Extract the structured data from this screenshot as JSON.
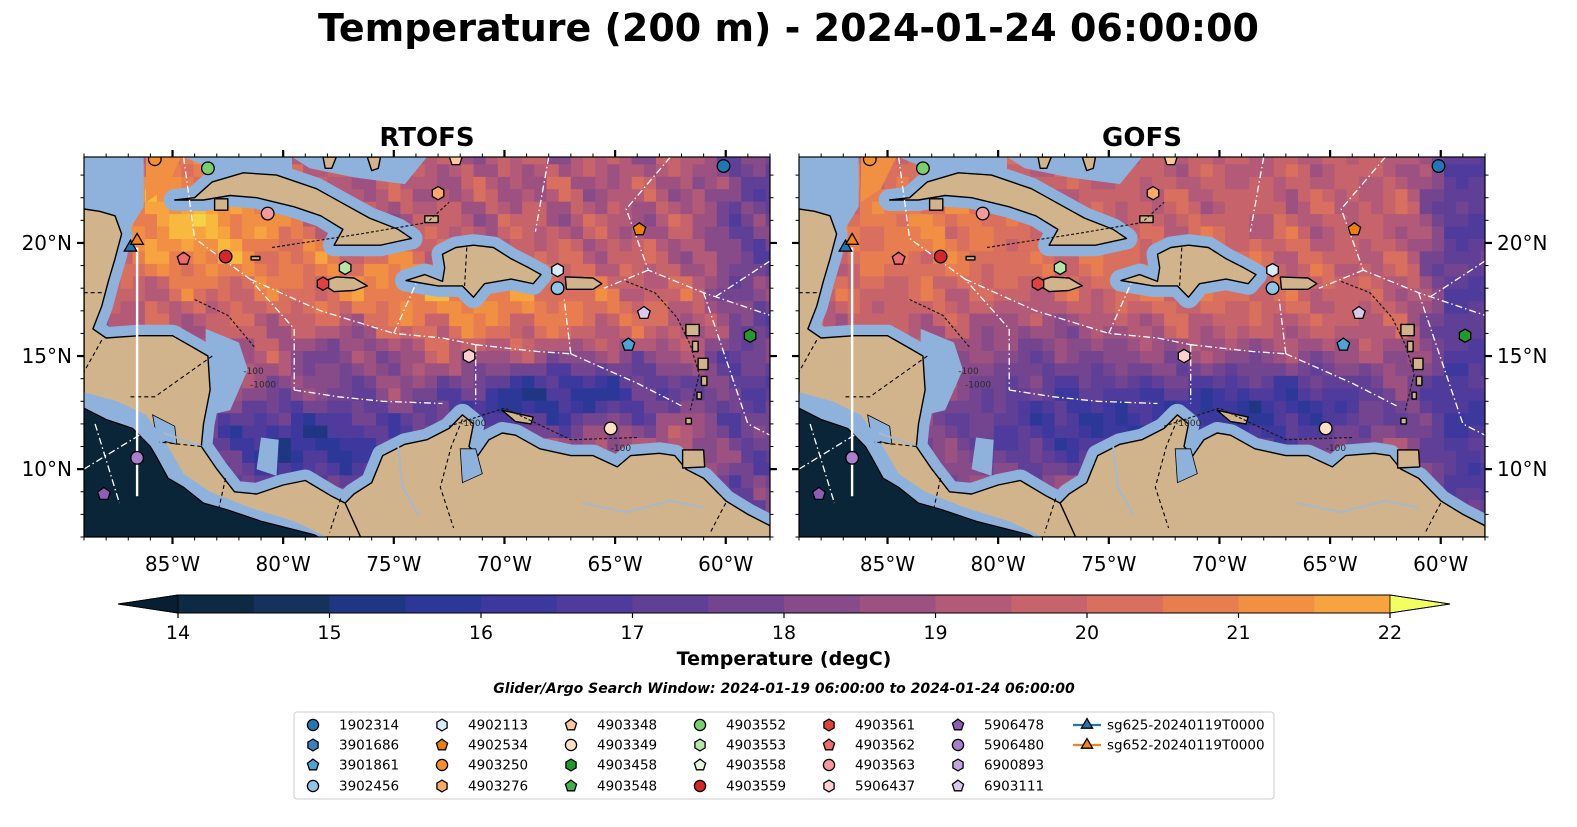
{
  "title": "Temperature (200 m) - 2024-01-24 06:00:00",
  "chart_data": {
    "type": "heatmap",
    "panels": [
      {
        "name": "RTOFS"
      },
      {
        "name": "GOFS"
      }
    ],
    "lon_ticks": [
      -85,
      -80,
      -75,
      -70,
      -65,
      -60
    ],
    "lon_tick_labels": [
      "85°W",
      "80°W",
      "75°W",
      "70°W",
      "65°W",
      "60°W"
    ],
    "lat_ticks": [
      10,
      15,
      20
    ],
    "lat_tick_labels": [
      "10°N",
      "15°N",
      "20°N"
    ],
    "xlim": [
      -89.0,
      -58.0
    ],
    "ylim": [
      7.0,
      23.8
    ],
    "colorbar": {
      "label": "Temperature (degC)",
      "vmin": 14,
      "vmax": 22,
      "step": 0.5,
      "ticks": [
        14,
        15,
        16,
        17,
        18,
        19,
        20,
        21,
        22
      ],
      "tick_labels": [
        "14",
        "15",
        "16",
        "17",
        "18",
        "19",
        "20",
        "21",
        "22"
      ],
      "colors": [
        "#0d2a45",
        "#15325f",
        "#1f3782",
        "#2c3897",
        "#3d389e",
        "#4f3b9b",
        "#603f97",
        "#734591",
        "#874b8a",
        "#9c5181",
        "#b25a77",
        "#c7646b",
        "#d86f5f",
        "#e87e50",
        "#f18f43",
        "#f7a33f",
        "#f8b93f",
        "#f4d344",
        "#eef15a"
      ],
      "under_color": "#081f33",
      "over_color": "#f2ff5e"
    },
    "subtitle": "Glider/Argo Search Window: 2024-01-19 06:00:00 to 2024-01-24 06:00:00",
    "contour_labels": [
      "-100",
      "-1000",
      "-1000",
      "-100"
    ],
    "platforms": [
      {
        "id": "1902314",
        "marker": "circle",
        "color": "#1f77b4",
        "lon": -60.1,
        "lat": 23.4
      },
      {
        "id": "3901686",
        "marker": "hexagon",
        "color": "#3b7fc0",
        "lon": null,
        "lat": null
      },
      {
        "id": "3901861",
        "marker": "pentagon",
        "color": "#4ea3d6",
        "lon": -64.4,
        "lat": 15.5
      },
      {
        "id": "3902456",
        "marker": "circle",
        "color": "#8ec6ea",
        "lon": -67.6,
        "lat": 18.0
      },
      {
        "id": "4902113",
        "marker": "hexagon",
        "color": "#d8ecf8",
        "lon": -67.6,
        "lat": 18.8
      },
      {
        "id": "4902534",
        "marker": "pentagon",
        "color": "#f07f0a",
        "lon": -63.9,
        "lat": 20.6
      },
      {
        "id": "4903250",
        "marker": "circle",
        "color": "#f7902c",
        "lon": -85.8,
        "lat": 23.7
      },
      {
        "id": "4903276",
        "marker": "hexagon",
        "color": "#f9aa66",
        "lon": -73.0,
        "lat": 22.2
      },
      {
        "id": "4903348",
        "marker": "pentagon",
        "color": "#fac89a",
        "lon": -72.2,
        "lat": 23.7
      },
      {
        "id": "4903349",
        "marker": "circle",
        "color": "#fde1c6",
        "lon": -65.2,
        "lat": 11.8
      },
      {
        "id": "4903458",
        "marker": "hexagon",
        "color": "#219a2b",
        "lon": -58.9,
        "lat": 15.9
      },
      {
        "id": "4903548",
        "marker": "pentagon",
        "color": "#3fb04a",
        "lon": null,
        "lat": null
      },
      {
        "id": "4903552",
        "marker": "circle",
        "color": "#79cf6f",
        "lon": -83.4,
        "lat": 23.3
      },
      {
        "id": "4903553",
        "marker": "hexagon",
        "color": "#b4e6a5",
        "lon": -77.2,
        "lat": 18.9
      },
      {
        "id": "4903558",
        "marker": "pentagon",
        "color": "#e2f7d8",
        "lon": null,
        "lat": null
      },
      {
        "id": "4903559",
        "marker": "circle",
        "color": "#d62728",
        "lon": -82.6,
        "lat": 19.4
      },
      {
        "id": "4903561",
        "marker": "hexagon",
        "color": "#e0413f",
        "lon": -78.2,
        "lat": 18.2
      },
      {
        "id": "4903562",
        "marker": "pentagon",
        "color": "#ed6b6b",
        "lon": -84.5,
        "lat": 19.3
      },
      {
        "id": "4903563",
        "marker": "circle",
        "color": "#f59a9a",
        "lon": -80.7,
        "lat": 21.3
      },
      {
        "id": "5906437",
        "marker": "hexagon",
        "color": "#fbd0cf",
        "lon": -71.6,
        "lat": 15.0
      },
      {
        "id": "5906478",
        "marker": "pentagon",
        "color": "#8f5cb4",
        "lon": -88.1,
        "lat": 8.9
      },
      {
        "id": "5906480",
        "marker": "circle",
        "color": "#a97fcb",
        "lon": -86.6,
        "lat": 10.5
      },
      {
        "id": "6900893",
        "marker": "hexagon",
        "color": "#c3a6de",
        "lon": null,
        "lat": null
      },
      {
        "id": "6903111",
        "marker": "pentagon",
        "color": "#dbc8ef",
        "lon": -63.7,
        "lat": 16.9
      },
      {
        "id": "sg625-20240119T0000",
        "marker": "triangle",
        "color": "#1f77b4",
        "lon": -86.9,
        "lat": 19.8
      },
      {
        "id": "sg652-20240119T0000",
        "marker": "triangle",
        "color": "#f58518",
        "lon": -86.6,
        "lat": 20.1
      }
    ]
  }
}
